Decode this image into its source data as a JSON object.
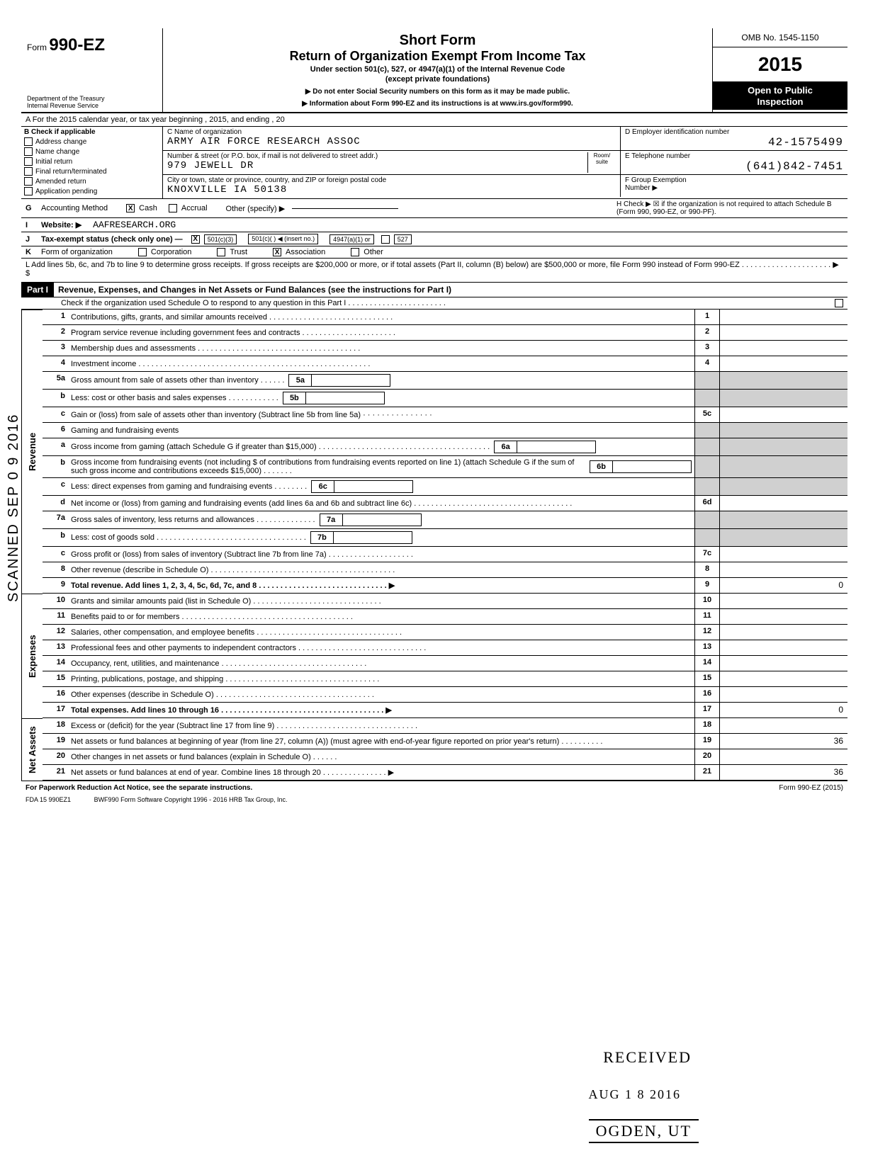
{
  "vertical_stamp": "SCANNED SEP 0 9 2016",
  "header": {
    "form_prefix": "Form",
    "form_number": "990-EZ",
    "dept1": "Department of the Treasury",
    "dept2": "Internal Revenue Service",
    "title1": "Short Form",
    "title2": "Return of Organization Exempt From Income Tax",
    "subtitle": "Under section 501(c), 527, or 4947(a)(1) of the Internal Revenue Code",
    "subtitle2": "(except private foundations)",
    "note1": "▶ Do not enter Social Security numbers on this form as it may be made public.",
    "note2": "▶ Information about Form 990-EZ and its instructions is at www.irs.gov/form990.",
    "omb": "OMB No. 1545-1150",
    "year": "2015",
    "open1": "Open to Public",
    "open2": "Inspection"
  },
  "row_a": "A  For the 2015 calendar year, or tax year beginning                                                              , 2015, and ending                                                          , 20",
  "section_b": {
    "label": "B  Check if applicable",
    "items": [
      "Address change",
      "Name change",
      "Initial return",
      "Final return/terminated",
      "Amended return",
      "Application pending"
    ]
  },
  "section_c": {
    "name_label": "C  Name of organization",
    "name_value": "ARMY AIR FORCE RESEARCH ASSOC",
    "street_label": "Number & street (or P.O. box, if mail is not delivered to street addr.)",
    "room_label": "Room/\nsuite",
    "street_value": "979 JEWELL DR",
    "city_label": "City or town, state or province, country, and ZIP or foreign postal code",
    "city_value": "KNOXVILLE IA 50138"
  },
  "section_d": {
    "ein_label": "D  Employer identification number",
    "ein_value": "42-1575499",
    "tel_label": "E  Telephone number",
    "tel_value": "(641)842-7451",
    "group_label": "F  Group Exemption",
    "group_label2": "Number  ▶"
  },
  "row_g": {
    "letter": "G",
    "label": "Accounting Method",
    "cash": "Cash",
    "accrual": "Accrual",
    "other": "Other (specify) ▶",
    "cash_checked": "X"
  },
  "row_h": "H  Check ▶ ☒ if the organization is not required to attach Schedule B (Form 990, 990-EZ, or 990-PF).",
  "row_i": {
    "letter": "I",
    "label": "Website: ▶",
    "value": "AAFRESEARCH.ORG"
  },
  "row_j": {
    "letter": "J",
    "label": "Tax-exempt status (check only one) —",
    "opts": [
      "501(c)(3)",
      "501(c)(   ) ◀ (insert no.)",
      "4947(a)(1) or",
      "527"
    ],
    "checked": "X"
  },
  "row_k": {
    "letter": "K",
    "label": "Form of organization",
    "opts": [
      "Corporation",
      "Trust",
      "Association",
      "Other"
    ],
    "checked_idx": 2
  },
  "row_l": "L  Add lines 5b, 6c, and 7b to line 9 to determine gross receipts. If gross receipts are $200,000 or more, or if total assets (Part II, column (B) below) are $500,000 or more, file Form 990 instead of Form 990-EZ  . . . . . . . . . . . .   . . . . . . . . .  ▶  $",
  "part1": {
    "tag": "Part I",
    "title": "Revenue, Expenses, and Changes in Net Assets or Fund Balances (see the instructions for Part I)",
    "check_line": "Check if the organization used Schedule O to respond to any question in this Part I  . . . . . . . . . .  . . . . . . . . . . . . .",
    "sidebar_revenue": "Revenue",
    "sidebar_expenses": "Expenses",
    "sidebar_netassets": "Net Assets"
  },
  "lines": {
    "l1": {
      "n": "1",
      "d": "Contributions, gifts, grants, and similar amounts received  . . . . . . . . . . . . . . . .    . . . . . . . . . . . . .",
      "box": "1"
    },
    "l2": {
      "n": "2",
      "d": "Program service revenue including government fees and contracts  . . . .   . . . . . . . . . . . . .  . . . . .",
      "box": "2"
    },
    "l3": {
      "n": "3",
      "d": "Membership dues and assessments  . . . . . . . . .   . .           .  . . . . . . . . . . . . . . . . .         . . . . . . . . .",
      "box": "3"
    },
    "l4": {
      "n": "4",
      "d": "Investment income . . . . . .                    . . . . . . . . . . . . . . . . . .   . . . .  . . . . . . . . . . . . .               . . . . . . . . . . . . .",
      "box": "4"
    },
    "l5a": {
      "n": "5a",
      "d": "Gross amount from sale of assets other than inventory  . . .       . . .",
      "ibox": "5a"
    },
    "l5b": {
      "n": "b",
      "d": "Less: cost or other basis and sales expenses . . .   . .            .   . . . . . .",
      "ibox": "5b"
    },
    "l5c": {
      "n": "c",
      "d": "Gain or (loss) from sale of assets other than inventory (Subtract line 5b from line 5a)  · · · · · · · · · · · · · · ·",
      "box": "5c"
    },
    "l6": {
      "n": "6",
      "d": "Gaming and fundraising events"
    },
    "l6a": {
      "n": "a",
      "d": "Gross income from gaming (attach Schedule G if greater than $15,000)           . . . . . . . . . . . . . . . . . . . . . . . . . . . . . . . . . . . . . . . .",
      "ibox": "6a"
    },
    "l6b": {
      "n": "b",
      "d": "Gross income from fundraising events (not including  $                           of contributions from fundraising events reported on line 1) (attach Schedule G if the sum of such gross income and contributions exceeds $15,000) . . . . .  . .",
      "ibox": "6b"
    },
    "l6c": {
      "n": "c",
      "d": "Less: direct expenses from gaming and fundraising events            . . . . . . . .",
      "ibox": "6c"
    },
    "l6d": {
      "n": "d",
      "d": "Net income or (loss) from gaming and fundraising events (add lines 6a and 6b and subtract line 6c)            . . .    . . .   . . .   . . .   .             .            . .  . . . . . . . . . .             .           . . . .  . . . . . .",
      "box": "6d"
    },
    "l7a": {
      "n": "7a",
      "d": "Gross sales of inventory, less returns and allowances  . . . . . . .  . . . . . . .",
      "ibox": "7a"
    },
    "l7b": {
      "n": "b",
      "d": "Less: cost of goods sold         . . . . . . . . . . . . . . . . . . . . . . . . . . . . .  . . . . . .",
      "ibox": "7b"
    },
    "l7c": {
      "n": "c",
      "d": "Gross profit or (loss) from sales of inventory (Subtract line 7b from line 7a)    . . . . .  . . . . . . . . . .  . . . . .",
      "box": "7c"
    },
    "l8": {
      "n": "8",
      "d": "Other revenue (describe in Schedule O) . . . . . . . . . . . . . . . . .           . . . . . . . . . .  . . . . .  . . . . . .   . . . . .",
      "box": "8"
    },
    "l9": {
      "n": "9",
      "d": "Total revenue. Add lines 1, 2, 3, 4, 5c, 6d, 7c, and 8  . . . . . . . .   . . . . . . . .   . . . . . .  . . . . . .  . .  ▶",
      "box": "9",
      "val": "0",
      "bold": true
    },
    "l10": {
      "n": "10",
      "d": "Grants and similar amounts paid (list in Schedule O) . . . . .        . . . . . . .  . . . . . .   . . . . . .      . . . .   . .",
      "box": "10"
    },
    "l11": {
      "n": "11",
      "d": "Benefits paid to or for members  . . .                                    . . . . . . . . . . . . . . . .   . . . . . . . . . . .  . . .  . . . . .  . .",
      "box": "11"
    },
    "l12": {
      "n": "12",
      "d": "Salaries, other compensation, and employee benefits  . . . . . . .  . . . . . . . . .   . . . . . . . . . .  . . . . . . . .",
      "box": "12"
    },
    "l13": {
      "n": "13",
      "d": "Professional fees and other payments to independent contractors . . . .     . . . . . . . . . . . . . . . . . . . . . . . . . .",
      "box": "13"
    },
    "l14": {
      "n": "14",
      "d": "Occupancy, rent, utilities, and maintenance  . .               . . . . . . . .   . . . . . .   . . .  . .  . . .   . . . . . . . . . .",
      "box": "14"
    },
    "l15": {
      "n": "15",
      "d": "Printing, publications, postage, and shipping . . . .    . . . . . . .  .  . . . . . .  . . . . . . . . . .  . . . . . .  . .",
      "box": "15"
    },
    "l16": {
      "n": "16",
      "d": "Other expenses (describe in Schedule O)    . . . . . . . . . . .      .  . . . . .   . . . .   . . .  . . . . . . . . . . . . .",
      "box": "16"
    },
    "l17": {
      "n": "17",
      "d": "Total expenses. Add lines 10 through 16    . . . . . . . . . . . . . . . .  . . . . . . . . . . . . . . . .  . . . .  . .  ▶",
      "box": "17",
      "val": "0",
      "bold": true
    },
    "l18": {
      "n": "18",
      "d": "Excess or (deficit) for the year (Subtract line 17 from line 9) . . . .           . . . . . . . . . . . . . . . . .  . . . . . . . . . . . .",
      "box": "18"
    },
    "l19": {
      "n": "19",
      "d": "Net assets or fund balances at beginning of year (from line 27, column (A)) (must agree with end-of-year figure reported on prior year's return)               . . . . .         . . . . .",
      "box": "19",
      "val": "36"
    },
    "l20": {
      "n": "20",
      "d": "Other changes in net assets or fund balances (explain in Schedule O)  . . . . . .",
      "box": "20"
    },
    "l21": {
      "n": "21",
      "d": "Net assets or fund balances at end of year. Combine lines 18 through 20 . . . .     . . . . . . . . . . .  ▶",
      "box": "21",
      "val": "36"
    }
  },
  "footer": {
    "left": "For Paperwork Reduction Act Notice, see the separate instructions.",
    "mid_a": "FDA     15  990EZ1",
    "mid_b": "BWF990       Form Software Copyright 1996 - 2016 HRB Tax Group, Inc.",
    "right": "Form 990-EZ (2015)"
  },
  "stamps": {
    "received": "RECEIVED",
    "date": "AUG 1 8 2016",
    "ogden": "OGDEN, UT"
  }
}
